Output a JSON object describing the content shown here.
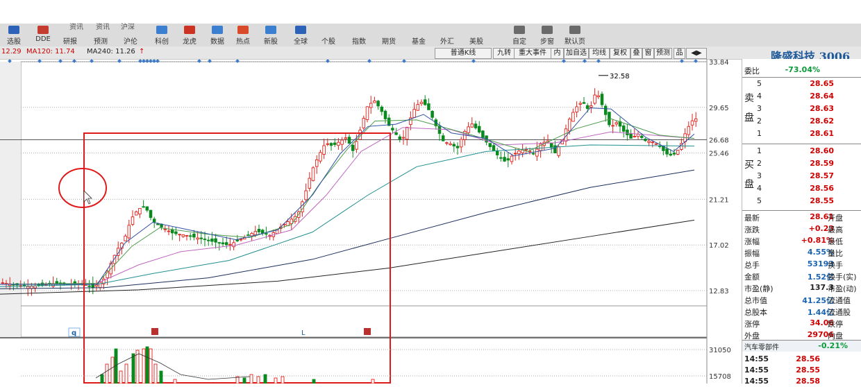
{
  "toolbar": {
    "top_row": [
      "资讯",
      "资讯",
      "沪深",
      "研报",
      "预测",
      "沪伦",
      "科创",
      "龙虎",
      "数据",
      "热点",
      "新股",
      "全球",
      "个股",
      "指数",
      "期货",
      "基金",
      "外汇",
      "美股",
      "自定",
      "步窗",
      "默认页"
    ],
    "items": [
      {
        "label": "选股",
        "icon": "search-icon",
        "color": "#2c62b8"
      },
      {
        "label": "DDE",
        "icon": "bar-chart-icon",
        "color": "#c43b2f"
      },
      {
        "label": "研报",
        "icon": "",
        "color": ""
      },
      {
        "label": "预测",
        "icon": "",
        "color": ""
      },
      {
        "label": "沪伦",
        "icon": "",
        "color": ""
      },
      {
        "label": "科创",
        "icon": "chip-icon",
        "color": "#3a7fd0"
      },
      {
        "label": "龙虎",
        "icon": "tiger-icon",
        "color": "#cc3322"
      },
      {
        "label": "数据",
        "icon": "data-icon",
        "color": "#3a7fd0"
      },
      {
        "label": "热点",
        "icon": "flame-icon",
        "color": "#d84a2a"
      },
      {
        "label": "新股",
        "icon": "new-stock-icon",
        "color": "#3a7fd0"
      },
      {
        "label": "全球",
        "icon": "globe-icon",
        "color": "#2c62b8"
      },
      {
        "label": "个股",
        "icon": "",
        "color": ""
      },
      {
        "label": "指数",
        "icon": "",
        "color": ""
      },
      {
        "label": "期货",
        "icon": "",
        "color": ""
      },
      {
        "label": "基金",
        "icon": "",
        "color": ""
      },
      {
        "label": "外汇",
        "icon": "",
        "color": ""
      },
      {
        "label": "美股",
        "icon": "",
        "color": ""
      },
      {
        "label": "自定",
        "icon": "custom-icon",
        "color": "#6a6a6a"
      },
      {
        "label": "步窗",
        "icon": "window-icon",
        "color": "#6a6a6a"
      },
      {
        "label": "默认页",
        "icon": "default-page-icon",
        "color": "#6a6a6a"
      }
    ]
  },
  "ma_bar": {
    "left_text": "12.29",
    "ma120": "MA120: 11.74",
    "ma240": "MA240: 11.26",
    "arrow": "↑"
  },
  "chart_toolbar": [
    "普通K线",
    "九转",
    "重大事件",
    "内",
    "加自选",
    "均线",
    "复权",
    "叠",
    "窗",
    "预测",
    "品",
    "◀▶"
  ],
  "stock_title": "隆盛科技 3006",
  "chart_data": {
    "type": "candlestick",
    "price_axis_labels": [
      "33.84",
      "29.65",
      "26.68",
      "25.46",
      "21.21",
      "17.02",
      "12.83"
    ],
    "volume_axis_labels": [
      "31050",
      "15708"
    ],
    "annotation_high": "32.58",
    "highlight_box": true,
    "markers": [
      "q",
      "L"
    ]
  },
  "panel": {
    "weibi_label": "委比",
    "weibi_value": "-73.04%",
    "sell_side_label": [
      "卖",
      "盘"
    ],
    "buy_side_label": [
      "买",
      "盘"
    ],
    "sell": [
      {
        "n": "5",
        "p": "28.65"
      },
      {
        "n": "4",
        "p": "28.64"
      },
      {
        "n": "3",
        "p": "28.63"
      },
      {
        "n": "2",
        "p": "28.62"
      },
      {
        "n": "1",
        "p": "28.61"
      }
    ],
    "buy": [
      {
        "n": "1",
        "p": "28.60"
      },
      {
        "n": "2",
        "p": "28.59"
      },
      {
        "n": "3",
        "p": "28.57"
      },
      {
        "n": "4",
        "p": "28.56"
      },
      {
        "n": "5",
        "p": "28.55"
      }
    ],
    "stats": [
      {
        "k": "最新",
        "v": "28.61",
        "k2": "开盘",
        "c": "#d00000"
      },
      {
        "k": "涨跌",
        "v": "+0.23",
        "k2": "最高",
        "c": "#d00000"
      },
      {
        "k": "涨幅",
        "v": "+0.81%",
        "k2": "最低",
        "c": "#d00000"
      },
      {
        "k": "振幅",
        "v": "4.55%",
        "k2": "量比",
        "c": "#1a64b4"
      },
      {
        "k": "总手",
        "v": "53193",
        "k2": "换手",
        "c": "#1a64b4"
      },
      {
        "k": "金额",
        "v": "1.52亿",
        "k2": "换手(实)",
        "c": "#1a64b4"
      },
      {
        "k": "市盈(静)",
        "v": "137.3",
        "k2": "市盈(动)",
        "c": "#222222"
      },
      {
        "k": "总市值",
        "v": "41.25亿",
        "k2": "流通值",
        "c": "#1a64b4"
      },
      {
        "k": "总股本",
        "v": "1.44亿",
        "k2": "流通股",
        "c": "#1a64b4"
      },
      {
        "k": "涨停",
        "v": "34.06",
        "k2": "跌停",
        "c": "#d00000"
      },
      {
        "k": "外盘",
        "v": "29706",
        "k2": "内盘",
        "c": "#d00000"
      }
    ],
    "sector_name": "汽车零部件",
    "sector_change": "-0.21%",
    "ticks": [
      {
        "t": "14:55",
        "p": "28.56"
      },
      {
        "t": "14:55",
        "p": "28.55"
      },
      {
        "t": "14:55",
        "p": "28.58"
      }
    ]
  }
}
